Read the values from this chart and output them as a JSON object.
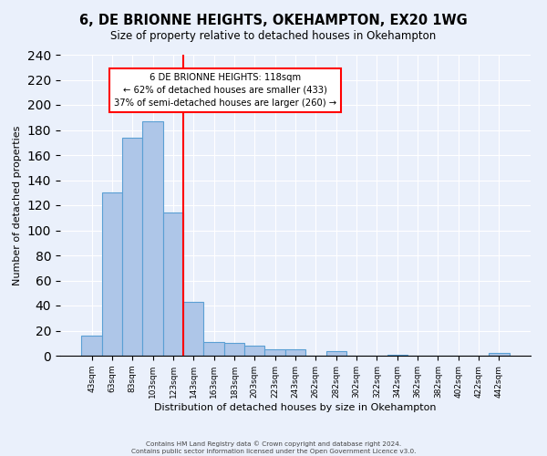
{
  "title": "6, DE BRIONNE HEIGHTS, OKEHAMPTON, EX20 1WG",
  "subtitle": "Size of property relative to detached houses in Okehampton",
  "xlabel": "Distribution of detached houses by size in Okehampton",
  "ylabel": "Number of detached properties",
  "bar_labels": [
    "43sqm",
    "63sqm",
    "83sqm",
    "103sqm",
    "123sqm",
    "143sqm",
    "163sqm",
    "183sqm",
    "203sqm",
    "223sqm",
    "243sqm",
    "262sqm",
    "282sqm",
    "302sqm",
    "322sqm",
    "342sqm",
    "362sqm",
    "382sqm",
    "402sqm",
    "422sqm",
    "442sqm"
  ],
  "bar_values": [
    16,
    130,
    174,
    187,
    114,
    43,
    11,
    10,
    8,
    5,
    5,
    0,
    4,
    0,
    0,
    1,
    0,
    0,
    0,
    0,
    2
  ],
  "bar_color": "#aec6e8",
  "bar_edgecolor": "#5a9fd4",
  "vline_color": "red",
  "vline_x": 4.5,
  "ylim": [
    0,
    240
  ],
  "yticks": [
    0,
    20,
    40,
    60,
    80,
    100,
    120,
    140,
    160,
    180,
    200,
    220,
    240
  ],
  "annotation_title": "6 DE BRIONNE HEIGHTS: 118sqm",
  "annotation_line1": "← 62% of detached houses are smaller (433)",
  "annotation_line2": "37% of semi-detached houses are larger (260) →",
  "annotation_box_color": "white",
  "annotation_box_edgecolor": "red",
  "footer1": "Contains HM Land Registry data © Crown copyright and database right 2024.",
  "footer2": "Contains public sector information licensed under the Open Government Licence v3.0.",
  "background_color": "#eaf0fb",
  "plot_bg_color": "#eaf0fb"
}
